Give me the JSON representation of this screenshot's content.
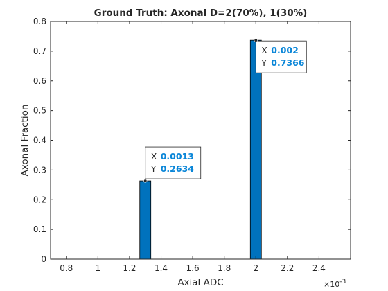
{
  "chart_data": {
    "type": "bar",
    "title": "Ground Truth: Axonal D=2(70%), 1(30%)",
    "xlabel": "Axial ADC",
    "ylabel": "Axonal Fraction",
    "x_exponent_label": "×10",
    "x_exponent_power": "-3",
    "xlim": [
      0.7,
      2.6
    ],
    "ylim": [
      0,
      0.8
    ],
    "bar_width": 0.07,
    "bar_color": "#0072BD",
    "x": [
      1.3,
      2.0
    ],
    "values": [
      0.2634,
      0.7366
    ],
    "xticks": [
      0.8,
      1.0,
      1.2,
      1.4,
      1.6,
      1.8,
      2.0,
      2.2,
      2.4
    ],
    "xtick_labels": [
      "0.8",
      "1",
      "1.2",
      "1.4",
      "1.6",
      "1.8",
      "2",
      "2.2",
      "2.4"
    ],
    "yticks": [
      0,
      0.1,
      0.2,
      0.3,
      0.4,
      0.5,
      0.6,
      0.7,
      0.8
    ],
    "ytick_labels": [
      "0",
      "0.1",
      "0.2",
      "0.3",
      "0.4",
      "0.5",
      "0.6",
      "0.7",
      "0.8"
    ],
    "grid": false,
    "datatips": [
      {
        "x_label": "X",
        "x_value": "0.0013",
        "y_label": "Y",
        "y_value": "0.2634"
      },
      {
        "x_label": "X",
        "x_value": "0.002",
        "y_label": "Y",
        "y_value": "0.7366"
      }
    ]
  }
}
